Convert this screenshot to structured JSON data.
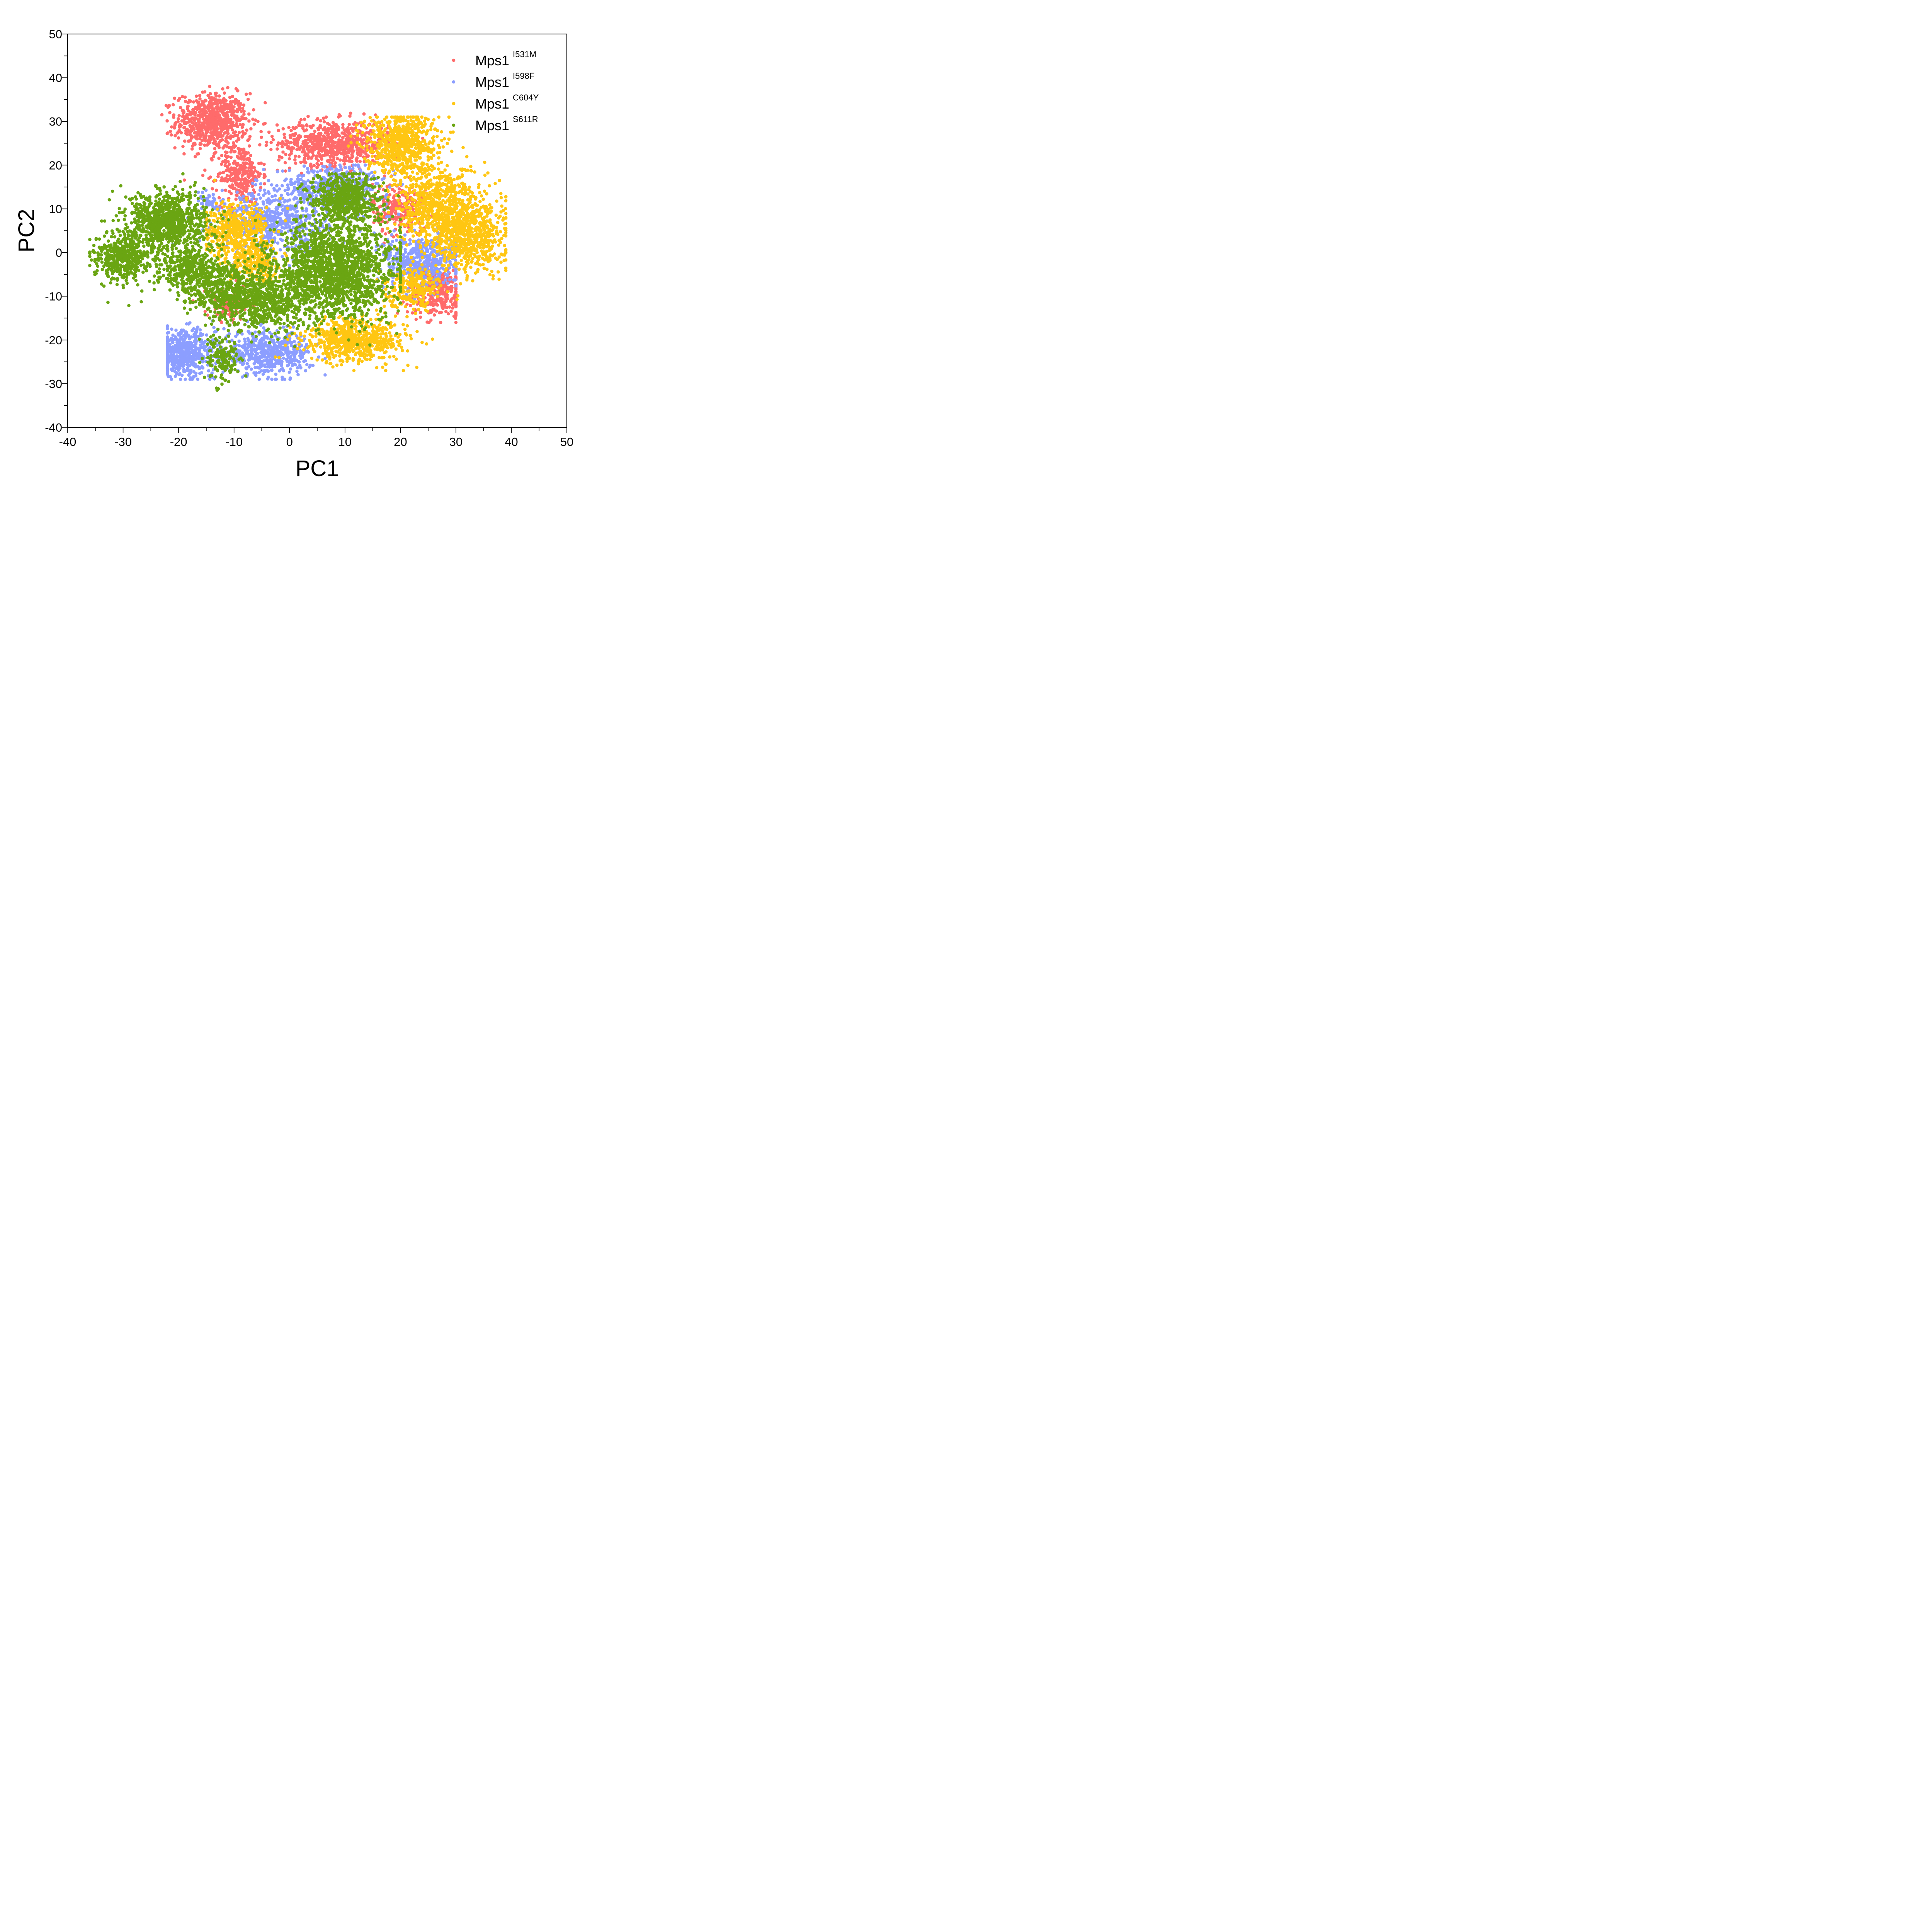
{
  "chart_data": {
    "type": "scatter",
    "title": "",
    "xlabel": "PC1",
    "ylabel": "PC2",
    "xlim": [
      -40,
      50
    ],
    "ylim": [
      -40,
      50
    ],
    "x_ticks": [
      -40,
      -30,
      -20,
      -10,
      0,
      10,
      20,
      30,
      40,
      50
    ],
    "y_ticks": [
      -40,
      -30,
      -20,
      -10,
      0,
      10,
      20,
      30,
      40,
      50
    ],
    "x_minor_step": 5,
    "y_minor_step": 5,
    "grid": false,
    "legend_position": "upper right (inside)",
    "series": [
      {
        "name": "Mps1 I531M",
        "base": "Mps1",
        "superscript": "I531M",
        "color": "#FF6B6B",
        "clusters": [
          {
            "cx": -14,
            "cy": 30,
            "sx": 3.2,
            "sy": 3.2,
            "n": 700
          },
          {
            "cx": -9,
            "cy": 18,
            "sx": 2.0,
            "sy": 3.5,
            "n": 300
          },
          {
            "cx": 8,
            "cy": 25,
            "sx": 5.0,
            "sy": 2.6,
            "n": 700
          },
          {
            "cx": 20,
            "cy": 10,
            "sx": 2.5,
            "sy": 3.0,
            "n": 250
          },
          {
            "cx": 27,
            "cy": -9,
            "sx": 2.8,
            "sy": 2.8,
            "n": 350
          },
          {
            "cx": -11,
            "cy": -12,
            "sx": 2.0,
            "sy": 2.0,
            "n": 120
          }
        ],
        "approx_range": {
          "x": [
            -23,
            30
          ],
          "y": [
            -16,
            38
          ]
        }
      },
      {
        "name": "Mps1 I598F",
        "base": "Mps1",
        "superscript": "I598F",
        "color": "#8C9EFF",
        "clusters": [
          {
            "cx": -19,
            "cy": -23,
            "sx": 2.8,
            "sy": 2.6,
            "n": 500
          },
          {
            "cx": -4,
            "cy": -23,
            "sx": 4.0,
            "sy": 2.4,
            "n": 550
          },
          {
            "cx": -3,
            "cy": 7,
            "sx": 5.0,
            "sy": 3.5,
            "n": 600
          },
          {
            "cx": 8,
            "cy": 15,
            "sx": 5.0,
            "sy": 2.5,
            "n": 450
          },
          {
            "cx": 24,
            "cy": -2,
            "sx": 3.5,
            "sy": 3.2,
            "n": 500
          },
          {
            "cx": -15,
            "cy": 12,
            "sx": 1.0,
            "sy": 1.0,
            "n": 40
          }
        ],
        "approx_range": {
          "x": [
            -22,
            30
          ],
          "y": [
            -29,
            20
          ]
        }
      },
      {
        "name": "Mps1 C604Y",
        "base": "Mps1",
        "superscript": "C604Y",
        "color": "#FFC612",
        "clusters": [
          {
            "cx": 20,
            "cy": 25,
            "sx": 3.2,
            "sy": 3.5,
            "n": 700
          },
          {
            "cx": 27,
            "cy": 10,
            "sx": 3.5,
            "sy": 5.0,
            "n": 800
          },
          {
            "cx": 33,
            "cy": 4,
            "sx": 3.0,
            "sy": 4.5,
            "n": 600
          },
          {
            "cx": 12,
            "cy": -20,
            "sx": 4.5,
            "sy": 2.5,
            "n": 650
          },
          {
            "cx": -10,
            "cy": 5,
            "sx": 3.0,
            "sy": 3.0,
            "n": 450
          },
          {
            "cx": -6,
            "cy": -2,
            "sx": 2.5,
            "sy": 2.5,
            "n": 250
          },
          {
            "cx": 22,
            "cy": -8,
            "sx": 2.5,
            "sy": 2.2,
            "n": 250
          }
        ],
        "approx_range": {
          "x": [
            -15,
            39
          ],
          "y": [
            -27,
            31
          ]
        }
      },
      {
        "name": "Mps1 S611R",
        "base": "Mps1",
        "superscript": "S611R",
        "color": "#6AA512",
        "clusters": [
          {
            "cx": -22,
            "cy": 7,
            "sx": 3.5,
            "sy": 3.5,
            "n": 900
          },
          {
            "cx": -30,
            "cy": -1,
            "sx": 2.5,
            "sy": 2.8,
            "n": 450
          },
          {
            "cx": -18,
            "cy": -4,
            "sx": 2.5,
            "sy": 2.5,
            "n": 350
          },
          {
            "cx": 8,
            "cy": -4,
            "sx": 5.5,
            "sy": 5.5,
            "n": 1800
          },
          {
            "cx": 10,
            "cy": 12,
            "sx": 3.2,
            "sy": 3.0,
            "n": 600
          },
          {
            "cx": -5,
            "cy": -11,
            "sx": 4.5,
            "sy": 3.5,
            "n": 700
          },
          {
            "cx": -12,
            "cy": -24,
            "sx": 1.5,
            "sy": 3.0,
            "n": 150
          },
          {
            "cx": -13,
            "cy": -8,
            "sx": 3.0,
            "sy": 3.0,
            "n": 350
          }
        ],
        "approx_range": {
          "x": [
            -36,
            20
          ],
          "y": [
            -33,
            18
          ]
        }
      }
    ]
  },
  "axes": {
    "x_title": "PC1",
    "y_title": "PC2"
  },
  "legend": {
    "items": [
      {
        "base": "Mps1",
        "sup": "I531M",
        "color": "#FF6B6B"
      },
      {
        "base": "Mps1",
        "sup": "I598F",
        "color": "#8C9EFF"
      },
      {
        "base": "Mps1",
        "sup": "C604Y",
        "color": "#FFC612"
      },
      {
        "base": "Mps1",
        "sup": "S611R",
        "color": "#6AA512"
      }
    ]
  }
}
